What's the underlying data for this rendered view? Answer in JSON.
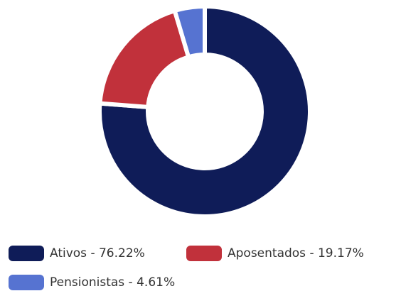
{
  "chart_data": {
    "type": "donut",
    "categories": [
      "Ativos - 76.22%",
      "Aposentados - 19.17%",
      "Pensionistas - 4.61%"
    ],
    "values": [
      76.22,
      19.17,
      4.61
    ],
    "colors": [
      "#0f1c58",
      "#c1313b",
      "#5673d1"
    ],
    "legend": "bottom-left"
  }
}
